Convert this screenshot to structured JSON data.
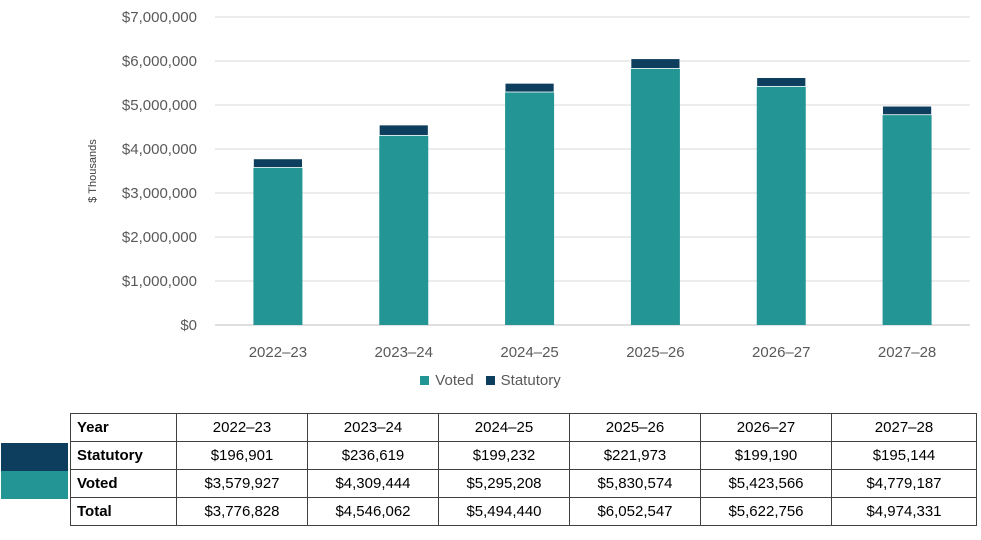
{
  "chart_data": {
    "type": "bar",
    "stacked": true,
    "categories": [
      "2022–23",
      "2023–24",
      "2024–25",
      "2025–26",
      "2026–27",
      "2027–28"
    ],
    "series": [
      {
        "name": "Voted",
        "color": "#229594",
        "values": [
          3579927,
          4309444,
          5295208,
          5830574,
          5423566,
          4779187
        ]
      },
      {
        "name": "Statutory",
        "color": "#0e3e5e",
        "values": [
          196901,
          236619,
          199232,
          221973,
          199190,
          195144
        ]
      }
    ],
    "ylabel": "$ Thousands",
    "ylim": [
      0,
      7000000
    ],
    "yticks": [
      "$0",
      "$1,000,000",
      "$2,000,000",
      "$3,000,000",
      "$4,000,000",
      "$5,000,000",
      "$6,000,000",
      "$7,000,000"
    ],
    "grid": true,
    "legend_position": "bottom"
  },
  "table": {
    "header_label": "Year",
    "years": [
      "2022–23",
      "2023–24",
      "2024–25",
      "2025–26",
      "2026–27",
      "2027–28"
    ],
    "rows": [
      {
        "label": "Statutory",
        "swatch_color": "#0e3e5e",
        "values": [
          "$196,901",
          "$236,619",
          "$199,232",
          "$221,973",
          "$199,190",
          "$195,144"
        ]
      },
      {
        "label": "Voted",
        "swatch_color": "#229594",
        "values": [
          "$3,579,927",
          "$4,309,444",
          "$5,295,208",
          "$5,830,574",
          "$5,423,566",
          "$4,779,187"
        ]
      },
      {
        "label": "Total",
        "values": [
          "$3,776,828",
          "$4,546,062",
          "$5,494,440",
          "$6,052,547",
          "$5,622,756",
          "$4,974,331"
        ]
      }
    ]
  }
}
